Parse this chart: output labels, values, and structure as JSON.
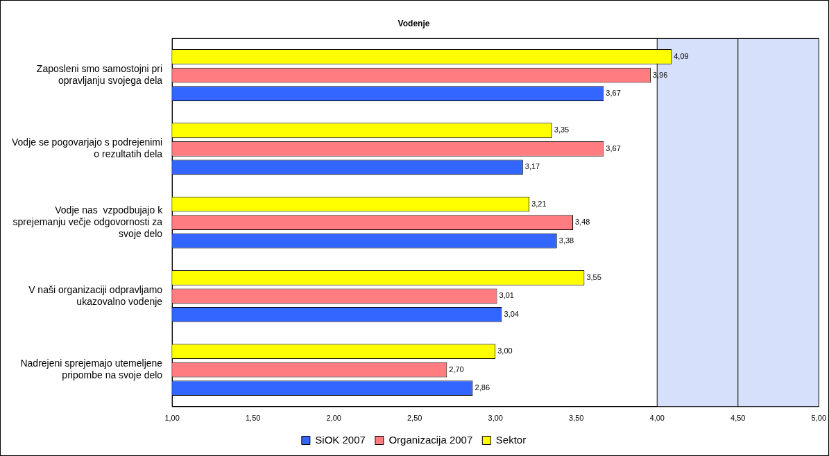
{
  "chart_data": {
    "type": "bar",
    "orientation": "horizontal",
    "title": "Vodenje",
    "categories": [
      "Zaposleni smo samostojni pri opravljanju svojega dela",
      "Vodje se pogovarjajo s podrejenimi o rezultatih dela",
      "Vodje nas  vzpodbujajo k sprejemanju večje odgovornosti za svoje delo",
      "V naši organizaciji odpravljamo ukazovalno vodenje",
      "Nadrejeni sprejemajo utemeljene pripombe na svoje delo"
    ],
    "series": [
      {
        "name": "SiOK 2007",
        "color": "#3366ff",
        "values": [
          3.67,
          3.17,
          3.38,
          3.04,
          2.86
        ],
        "value_labels": [
          "3,67",
          "3,17",
          "3,38",
          "3,04",
          "2,86"
        ]
      },
      {
        "name": "Organizacija 2007",
        "color": "#ff7c80",
        "values": [
          3.96,
          3.67,
          3.48,
          3.01,
          2.7
        ],
        "value_labels": [
          "3,96",
          "3,67",
          "3,48",
          "3,01",
          "2,70"
        ]
      },
      {
        "name": "Sektor",
        "color": "#ffff00",
        "values": [
          4.09,
          3.35,
          3.21,
          3.55,
          3.0
        ],
        "value_labels": [
          "4,09",
          "3,35",
          "3,21",
          "3,55",
          "3,00"
        ]
      }
    ],
    "xlim": [
      1,
      5
    ],
    "xticks": [
      {
        "value": 1,
        "label": "1,00"
      },
      {
        "value": 1.5,
        "label": "1,50"
      },
      {
        "value": 2,
        "label": "2,00"
      },
      {
        "value": 2.5,
        "label": "2,50"
      },
      {
        "value": 3,
        "label": "3,00"
      },
      {
        "value": 3.5,
        "label": "3,50"
      },
      {
        "value": 4,
        "label": "4,00"
      },
      {
        "value": 4.5,
        "label": "4,50"
      },
      {
        "value": 5,
        "label": "5,00"
      }
    ],
    "bands": [
      {
        "axis": "x",
        "from": 4,
        "to": 5,
        "color": "#d6e0fa"
      }
    ],
    "ref_lines": [
      {
        "axis": "x",
        "value": 4,
        "color": "#000000"
      },
      {
        "axis": "x",
        "value": 4.5,
        "color": "#000000"
      }
    ],
    "grid": false,
    "legend": "bottom"
  }
}
